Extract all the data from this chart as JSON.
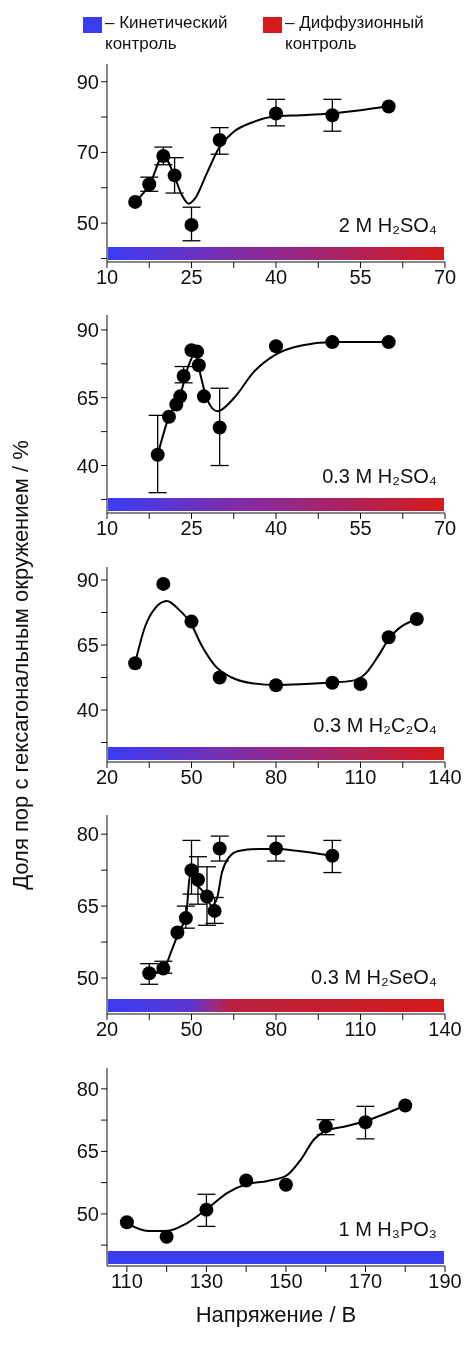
{
  "chart_data": [
    {
      "type": "scatter",
      "line_style": "solid",
      "annotations": [
        "– Кинетический контроль",
        "– Диффузионный контроль",
        "2 M H₂SO₄"
      ],
      "xlim": [
        10,
        70
      ],
      "xticks": [
        10,
        {
          "value": 17.5,
          "label": null
        },
        25,
        {
          "value": 32.5,
          "label": null
        },
        40,
        {
          "value": 47.5,
          "label": null
        },
        55,
        {
          "value": 62.5,
          "label": null
        },
        70
      ],
      "ylim": [
        39,
        95
      ],
      "yticks": [
        {
          "value": 40,
          "label": null
        },
        50,
        {
          "value": 60,
          "label": null
        },
        70,
        {
          "value": 80,
          "label": null
        },
        90
      ],
      "series": [
        {
          "marker": "circle",
          "color": "#000000",
          "x": [
            15,
            17.5,
            20,
            22,
            25,
            30,
            40,
            50,
            60
          ],
          "values": [
            56,
            61,
            69,
            63.5,
            49.5,
            73.5,
            81,
            80.5,
            83
          ],
          "errors": [
            null,
            [
              59,
              63
            ],
            [
              66.5,
              71.5
            ],
            [
              58.5,
              68.5
            ],
            [
              45,
              54.5
            ],
            [
              69.5,
              77
            ],
            [
              77.5,
              85
            ],
            [
              76,
              85
            ],
            null
          ]
        },
        {
          "type": "line",
          "marker": "none",
          "color": "#000000",
          "x": [
            15,
            17.6,
            20,
            21.8,
            23.3,
            24.5,
            25.6,
            27.7,
            29.8,
            32.4,
            36,
            40,
            44.3,
            49.8,
            55,
            60
          ],
          "values": [
            56,
            61,
            69,
            64,
            57.9,
            55.5,
            56.9,
            64,
            71,
            75.7,
            78.6,
            80.2,
            80.5,
            81,
            81.9,
            83.1
          ]
        }
      ]
    },
    {
      "type": "scatter",
      "line_style": "solid",
      "annotations": [
        "0.3 M H₂SO₄"
      ],
      "xlim": [
        10,
        70
      ],
      "xticks": [
        10,
        {
          "value": 17.5,
          "label": null
        },
        25,
        {
          "value": 32.5,
          "label": null
        },
        40,
        {
          "value": 47.5,
          "label": null
        },
        55,
        {
          "value": 62.5,
          "label": null
        },
        70
      ],
      "ylim": [
        22.5,
        95.5
      ],
      "yticks": [
        {
          "value": 27.5,
          "label": null
        },
        40,
        {
          "value": 52.5,
          "label": null
        },
        65,
        {
          "value": 77.5,
          "label": null
        },
        90
      ],
      "series": [
        {
          "marker": "circle",
          "color": "#000000",
          "x": [
            19,
            21,
            22.3,
            23,
            23.6,
            25,
            26,
            26.3,
            27.2,
            30,
            40,
            50,
            60
          ],
          "values": [
            44,
            58,
            62.5,
            65.5,
            73,
            82.5,
            82,
            77,
            65.5,
            54,
            84,
            85.5,
            85.5
          ],
          "errors": [
            [
              30,
              58.5
            ],
            null,
            null,
            null,
            [
              70.5,
              76.5
            ],
            null,
            null,
            null,
            null,
            [
              40,
              68.5
            ],
            null,
            null,
            null
          ]
        },
        {
          "type": "line",
          "marker": "none",
          "color": "#000000",
          "x": [
            19,
            21,
            23,
            24.5,
            25.7,
            26.6,
            27.8,
            29.6,
            32.5,
            36.1,
            40,
            44.3,
            50,
            60
          ],
          "values": [
            44,
            58,
            66,
            77,
            81.4,
            73.4,
            64.2,
            60,
            64.8,
            74.6,
            81,
            84.2,
            85.5,
            85.5
          ]
        }
      ]
    },
    {
      "type": "scatter",
      "line_style": "solid",
      "annotations": [
        "0.3 M H₂C₂O₄"
      ],
      "ylabel": "Доля пор с гексагональным окружением / %",
      "xlim": [
        20,
        140
      ],
      "xticks": [
        20,
        {
          "value": 35,
          "label": null
        },
        50,
        {
          "value": 65,
          "label": null
        },
        80,
        {
          "value": 95,
          "label": null
        },
        110,
        {
          "value": 125,
          "label": null
        },
        140
      ],
      "ylim": [
        20,
        95
      ],
      "yticks": [
        {
          "value": 27.5,
          "label": null
        },
        40,
        {
          "value": 52.5,
          "label": null
        },
        65,
        {
          "value": 77.5,
          "label": null
        },
        90
      ],
      "series": [
        {
          "marker": "circle",
          "color": "#000000",
          "x": [
            30,
            40,
            50,
            60,
            80,
            100,
            110,
            120,
            130
          ],
          "values": [
            58,
            88.5,
            74,
            52.5,
            49.5,
            50.5,
            50,
            68,
            75
          ]
        },
        {
          "type": "line",
          "marker": "none",
          "color": "#000000",
          "x": [
            30,
            33.6,
            37.2,
            41.3,
            45.4,
            49.6,
            53.7,
            58.4,
            64.3,
            71.4,
            80,
            90.4,
            100,
            106.9,
            111.6,
            116.3,
            120,
            130
          ],
          "values": [
            58.2,
            72.3,
            79.3,
            81.9,
            78.7,
            73.6,
            64.6,
            57,
            52.5,
            50.3,
            49.6,
            50,
            50.6,
            51.2,
            53.8,
            60.8,
            67.2,
            75.1
          ]
        }
      ]
    },
    {
      "type": "scatter",
      "line_style": "solid",
      "annotations": [
        "0.3 M H₂SeO₄"
      ],
      "xlim": [
        20,
        140
      ],
      "xticks": [
        20,
        {
          "value": 35,
          "label": null
        },
        50,
        {
          "value": 65,
          "label": null
        },
        80,
        {
          "value": 95,
          "label": null
        },
        110,
        {
          "value": 125,
          "label": null
        },
        140
      ],
      "ylim": [
        42.5,
        84
      ],
      "yticks": [
        50,
        {
          "value": 57.5,
          "label": null
        },
        65,
        {
          "value": 72.5,
          "label": null
        },
        80
      ],
      "series": [
        {
          "marker": "circle",
          "color": "#000000",
          "x": [
            35,
            40,
            45,
            48,
            50,
            52.3,
            55.5,
            58.2,
            60,
            80,
            100
          ],
          "values": [
            51,
            52,
            59.5,
            62.5,
            72.5,
            70.5,
            67,
            64,
            77,
            77,
            75.5
          ],
          "errors": [
            [
              48.7,
              53
            ],
            [
              51,
              53.5
            ],
            null,
            [
              60.4,
              65
            ],
            [
              67.5,
              78.7
            ],
            [
              65.4,
              75.3
            ],
            [
              61,
              73.2
            ],
            [
              61.4,
              66.8
            ],
            [
              74.4,
              79.6
            ],
            [
              74.4,
              79.6
            ],
            [
              72,
              78.7
            ]
          ]
        },
        {
          "type": "line",
          "marker": "none",
          "color": "#000000",
          "x": [
            34.8,
            40.1,
            43.1,
            46,
            48,
            49.6,
            51.3,
            54.3,
            57.2,
            59,
            60.8,
            63.2,
            66.7,
            73.8,
            80,
            88,
            100
          ],
          "values": [
            50.8,
            51.9,
            56,
            60.2,
            62.6,
            72,
            69.9,
            67.9,
            65.1,
            66.5,
            72,
            75.1,
            76.5,
            76.9,
            76.9,
            76.5,
            75.5
          ]
        }
      ]
    },
    {
      "type": "scatter",
      "line_style": "solid",
      "annotations": [
        "1 M H₃PO₃"
      ],
      "xlabel": "Напряжение / В",
      "xlim": [
        105,
        190
      ],
      "xticks": [
        110,
        {
          "value": 120,
          "label": null
        },
        130,
        {
          "value": 140,
          "label": null
        },
        150,
        {
          "value": 160,
          "label": null
        },
        170,
        {
          "value": 180,
          "label": null
        },
        190
      ],
      "ylim": [
        37.5,
        85
      ],
      "yticks": [
        {
          "value": 42.5,
          "label": null
        },
        50,
        {
          "value": 57.5,
          "label": null
        },
        65,
        {
          "value": 72.5,
          "label": null
        },
        80
      ],
      "series": [
        {
          "marker": "circle",
          "color": "#000000",
          "x": [
            110,
            120,
            130,
            140,
            150,
            160,
            170,
            180
          ],
          "values": [
            48,
            44.5,
            51,
            58,
            57,
            71,
            72,
            76
          ],
          "errors": [
            null,
            null,
            [
              47,
              54.7
            ],
            null,
            null,
            [
              69,
              72.6
            ],
            [
              68,
              75.8
            ],
            null
          ]
        },
        {
          "type": "line",
          "marker": "none",
          "color": "#000000",
          "x": [
            110,
            115.4,
            120,
            124.6,
            130,
            135.4,
            140,
            145.4,
            150,
            153.8,
            157.1,
            160,
            165.4,
            170,
            180
          ],
          "values": [
            47.8,
            45.9,
            45.9,
            47.5,
            51.1,
            55.1,
            57.1,
            57.9,
            59.1,
            63.1,
            67.9,
            69.9,
            71.1,
            72.3,
            76
          ]
        }
      ]
    }
  ]
}
